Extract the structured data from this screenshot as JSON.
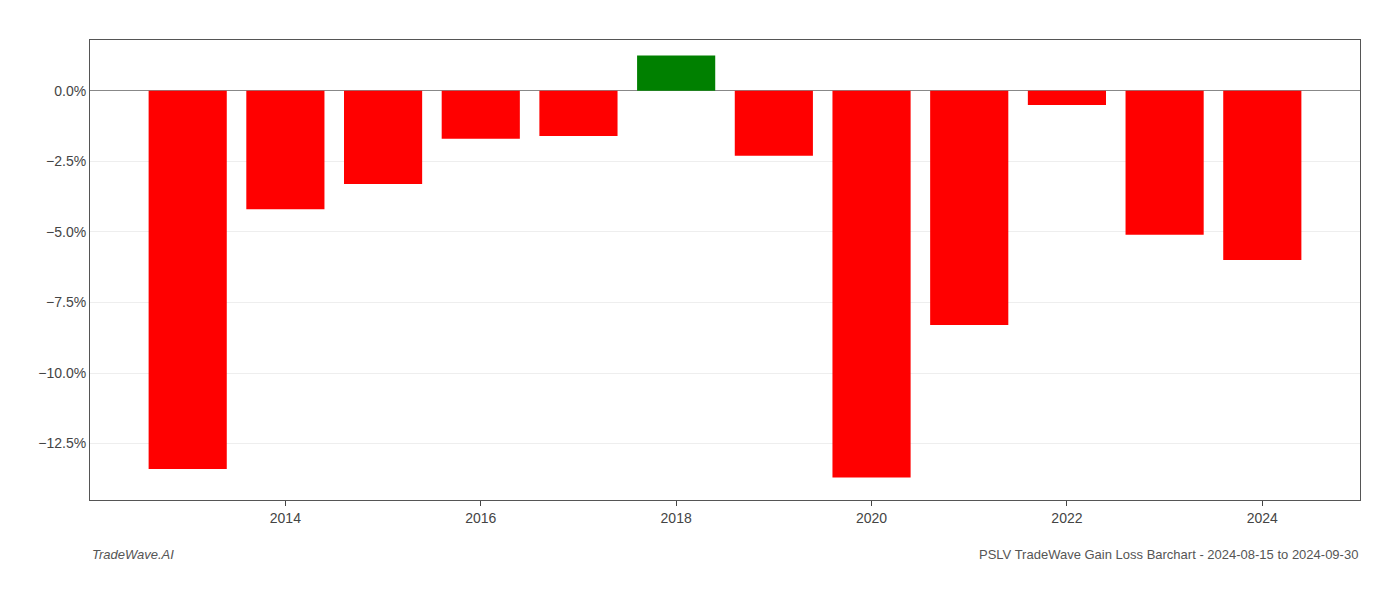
{
  "chart_data": {
    "type": "bar",
    "x": [
      2013,
      2014,
      2015,
      2016,
      2017,
      2018,
      2019,
      2020,
      2021,
      2022,
      2023,
      2024
    ],
    "values": [
      -13.4,
      -4.2,
      -3.3,
      -1.7,
      -1.6,
      1.25,
      -2.3,
      -13.7,
      -8.3,
      -0.5,
      -5.1,
      -6.0
    ],
    "colors": [
      "#FF0000",
      "#FF0000",
      "#FF0000",
      "#FF0000",
      "#FF0000",
      "#008000",
      "#FF0000",
      "#FF0000",
      "#FF0000",
      "#FF0000",
      "#FF0000",
      "#FF0000"
    ],
    "xlim": [
      2012,
      2025
    ],
    "xticks": [
      2014,
      2016,
      2018,
      2020,
      2022,
      2024
    ],
    "ylim": [
      -14.5,
      1.8
    ],
    "yticks": [
      {
        "value": 0.0,
        "label": "0.0%"
      },
      {
        "value": -2.5,
        "label": "−2.5%"
      },
      {
        "value": -5.0,
        "label": "−5.0%"
      },
      {
        "value": -7.5,
        "label": "−7.5%"
      },
      {
        "value": -10.0,
        "label": "−10.0%"
      },
      {
        "value": -12.5,
        "label": "−12.5%"
      }
    ],
    "grid": true,
    "annotations": [
      "TradeWave.AI",
      "PSLV TradeWave Gain Loss Barchart - 2024-08-15 to 2024-09-30"
    ]
  }
}
